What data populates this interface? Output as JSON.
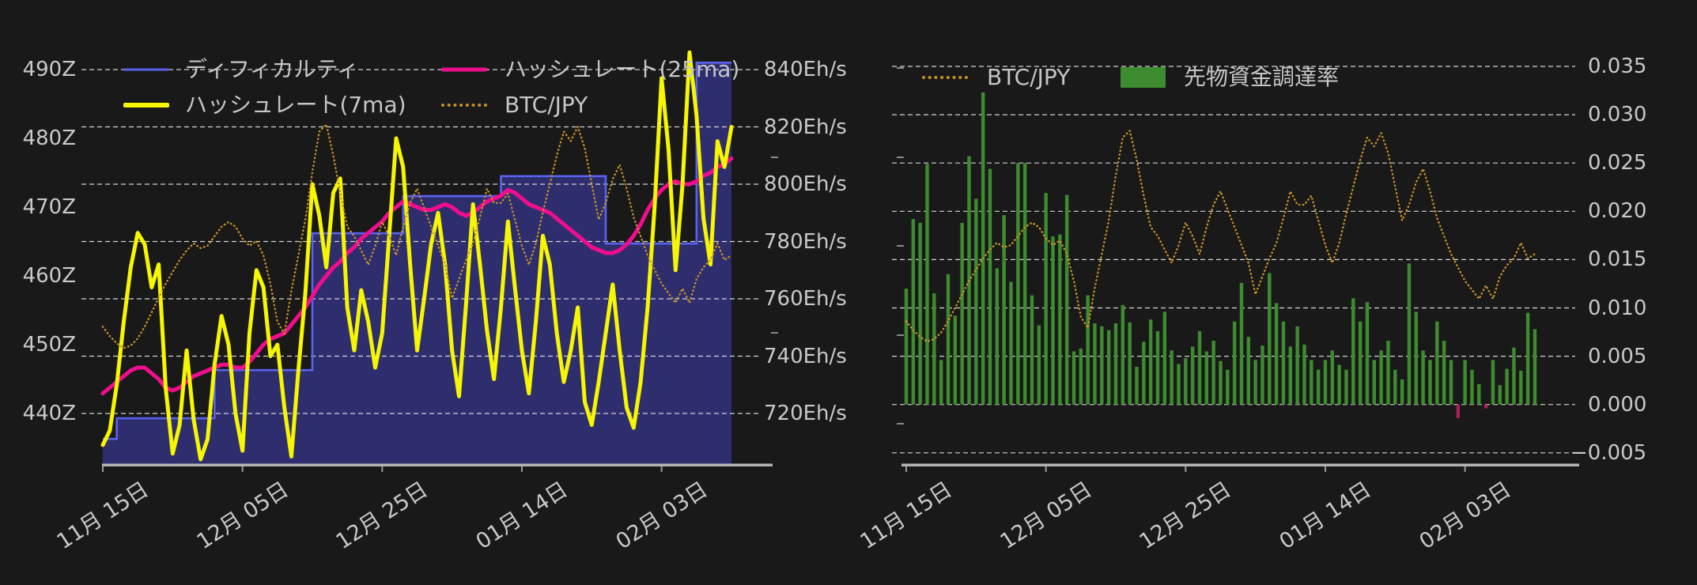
{
  "app": {
    "background": "#191919",
    "text_color": "#c9c9c9",
    "gridline_color": "#e8e8e8",
    "baseline_color": "#b5b5b5"
  },
  "left_chart": {
    "legend": [
      {
        "label": "ディフィカルティ",
        "color": "#5a62f0",
        "style": "line-thin"
      },
      {
        "label": "ハッシュレート(25ma)",
        "color": "#f20d8e",
        "style": "line"
      },
      {
        "label": "ハッシュレート(7ma)",
        "color": "#f6f600",
        "style": "line-thick"
      },
      {
        "label": "BTC/JPY",
        "color": "#c79228",
        "style": "dotted"
      }
    ],
    "y_axis_left": {
      "labels": [
        "490Z",
        "480Z",
        "470Z",
        "460Z",
        "450Z",
        "440Z"
      ],
      "values": [
        490,
        480,
        470,
        460,
        450,
        440
      ]
    },
    "y_axis_right": {
      "labels": [
        "840Eh/s",
        "820Eh/s",
        "800Eh/s",
        "780Eh/s",
        "760Eh/s",
        "740Eh/s",
        "720Eh/s"
      ],
      "values": [
        840,
        820,
        800,
        780,
        760,
        740,
        720
      ]
    },
    "x_axis": {
      "labels": [
        "11月 15日",
        "12月 05日",
        "12月 25日",
        "01月 14日",
        "02月 03日"
      ],
      "label_days": [
        0,
        20,
        40,
        60,
        80
      ]
    }
  },
  "right_chart": {
    "legend": [
      {
        "label": "BTC/JPY",
        "color": "#c79228",
        "style": "dotted"
      },
      {
        "label": "先物資金調達率",
        "color": "#3d8c2f",
        "style": "rect"
      }
    ],
    "y_axis_right": {
      "labels": [
        "0.035",
        "0.030",
        "0.025",
        "0.020",
        "0.015",
        "0.010",
        "0.005",
        "0.000",
        "−0.005"
      ],
      "values": [
        0.035,
        0.03,
        0.025,
        0.02,
        0.015,
        0.01,
        0.005,
        0.0,
        -0.005
      ]
    },
    "x_axis": {
      "labels": [
        "11月 15日",
        "12月 05日",
        "12月 25日",
        "01月 14日",
        "02月 03日"
      ],
      "label_days": [
        0,
        20,
        40,
        60,
        80
      ]
    }
  },
  "chart_data": [
    {
      "id": "difficulty-hashrate-chart",
      "type": "line",
      "x": {
        "unit": "day-index",
        "range": [
          0,
          90
        ],
        "tick_days": [
          0,
          20,
          40,
          60,
          80
        ],
        "tick_labels": [
          "11月 15日",
          "12月 05日",
          "12月 25日",
          "01月 14日",
          "02月 03日"
        ]
      },
      "ylim_left": [
        435,
        492
      ],
      "ylim_right_ehs": [
        715,
        845
      ],
      "grid": "horizontal-dashed-at-right-axis-values",
      "legend_position": "top-inside-two-rows",
      "series": [
        {
          "name": "ディフィカルティ",
          "unit": "Z",
          "axis": "left",
          "color": "#5a62f0",
          "fill_color": "#2e2e6e",
          "style": "step-area",
          "segments": [
            {
              "from_day": 0,
              "to_day": 2,
              "value": 436.3
            },
            {
              "from_day": 2,
              "to_day": 16,
              "value": 439.3
            },
            {
              "from_day": 16,
              "to_day": 30,
              "value": 446.3
            },
            {
              "from_day": 30,
              "to_day": 43,
              "value": 466.2
            },
            {
              "from_day": 43,
              "to_day": 57,
              "value": 471.6
            },
            {
              "from_day": 57,
              "to_day": 72,
              "value": 474.5
            },
            {
              "from_day": 72,
              "to_day": 85,
              "value": 464.7
            },
            {
              "from_day": 85,
              "to_day": 90,
              "value": 491.0
            }
          ]
        },
        {
          "name": "ハッシュレート(7ma)",
          "unit": "Eh/s",
          "axis": "right",
          "color": "#f6f600",
          "style": "solid",
          "values": [
            709,
            714,
            730,
            752,
            771,
            783,
            779,
            764,
            772,
            729,
            706,
            716,
            742,
            718,
            704,
            711,
            737,
            754,
            744,
            720,
            707,
            748,
            770,
            764,
            740,
            744,
            722,
            705,
            735,
            762,
            800,
            789,
            771,
            797,
            802,
            757,
            742,
            763,
            752,
            736,
            748,
            782,
            816,
            806,
            772,
            742,
            760,
            779,
            790,
            772,
            742,
            726,
            758,
            793,
            772,
            749,
            732,
            757,
            787,
            764,
            742,
            727,
            752,
            782,
            772,
            748,
            731,
            742,
            757,
            724,
            716,
            731,
            748,
            765,
            742,
            722,
            715,
            731,
            757,
            792,
            837,
            812,
            770,
            800,
            846,
            824,
            788,
            772,
            815,
            806,
            820
          ]
        },
        {
          "name": "ハッシュレート(25ma)",
          "unit": "Eh/s",
          "axis": "right",
          "color": "#f20d8e",
          "style": "solid",
          "values": [
            727,
            729,
            731,
            733,
            735,
            736,
            736,
            734,
            732,
            729,
            728,
            729,
            731,
            733,
            734,
            735,
            736,
            737,
            737,
            736,
            736,
            738,
            741,
            744,
            746,
            747,
            748,
            751,
            754,
            757,
            761,
            765,
            768,
            771,
            773,
            776,
            778,
            781,
            783,
            785,
            787,
            790,
            792,
            794,
            793,
            792,
            791,
            791,
            792,
            793,
            792,
            790,
            789,
            790,
            792,
            794,
            795,
            796,
            798,
            797,
            795,
            793,
            792,
            791,
            790,
            788,
            786,
            784,
            782,
            780,
            778,
            777,
            776,
            776,
            777,
            779,
            782,
            786,
            791,
            795,
            798,
            800,
            801,
            800,
            800,
            801,
            803,
            804,
            806,
            807,
            809
          ]
        },
        {
          "name": "BTC/JPY",
          "axis": "none-visible",
          "color": "#c79228",
          "style": "dotted",
          "note": "price axis not shown in chart; values normalized 0-1 of its visual span",
          "values_norm": [
            0.1,
            0.06,
            0.03,
            0.01,
            0.02,
            0.05,
            0.1,
            0.16,
            0.22,
            0.28,
            0.33,
            0.38,
            0.42,
            0.45,
            0.43,
            0.44,
            0.48,
            0.52,
            0.54,
            0.52,
            0.47,
            0.44,
            0.46,
            0.4,
            0.28,
            0.12,
            0.07,
            0.25,
            0.4,
            0.55,
            0.75,
            0.92,
            0.95,
            0.82,
            0.66,
            0.52,
            0.48,
            0.42,
            0.36,
            0.44,
            0.54,
            0.48,
            0.4,
            0.52,
            0.62,
            0.68,
            0.6,
            0.52,
            0.44,
            0.36,
            0.22,
            0.3,
            0.38,
            0.45,
            0.56,
            0.68,
            0.62,
            0.62,
            0.66,
            0.55,
            0.44,
            0.36,
            0.45,
            0.58,
            0.7,
            0.82,
            0.92,
            0.88,
            0.94,
            0.85,
            0.7,
            0.55,
            0.62,
            0.72,
            0.78,
            0.68,
            0.56,
            0.48,
            0.4,
            0.34,
            0.28,
            0.24,
            0.2,
            0.26,
            0.2,
            0.3,
            0.35,
            0.38,
            0.45,
            0.38,
            0.4
          ]
        }
      ]
    },
    {
      "id": "funding-rate-chart",
      "type": "bar",
      "x": {
        "unit": "day-index",
        "range": [
          0,
          90
        ],
        "tick_days": [
          0,
          20,
          40,
          60,
          80
        ],
        "tick_labels": [
          "11月 15日",
          "12月 05日",
          "12月 25日",
          "01月 14日",
          "02月 03日"
        ]
      },
      "ylim": [
        -0.005,
        0.035
      ],
      "grid": "horizontal-dashed",
      "legend_position": "top-inside",
      "series": [
        {
          "name": "先物資金調達率",
          "color": "#3d8c2f",
          "negative_color": "#a8215a",
          "style": "bar",
          "values": [
            0.012,
            0.0192,
            0.0188,
            0.0249,
            0.0115,
            0.0046,
            0.0135,
            0.0092,
            0.0188,
            0.0257,
            0.0213,
            0.0323,
            0.0244,
            0.0141,
            0.0196,
            0.0127,
            0.025,
            0.025,
            0.0113,
            0.0082,
            0.0219,
            0.0174,
            0.0176,
            0.0217,
            0.0055,
            0.0058,
            0.0113,
            0.0084,
            0.0081,
            0.0077,
            0.0084,
            0.0103,
            0.0085,
            0.0039,
            0.0065,
            0.0088,
            0.0076,
            0.0096,
            0.0056,
            0.0042,
            0.0048,
            0.006,
            0.0076,
            0.0055,
            0.0066,
            0.0045,
            0.0036,
            0.0086,
            0.0126,
            0.007,
            0.0046,
            0.0061,
            0.0136,
            0.0105,
            0.0086,
            0.006,
            0.0081,
            0.0062,
            0.0046,
            0.0036,
            0.0046,
            0.0056,
            0.0041,
            0.0036,
            0.011,
            0.0086,
            0.0106,
            0.0046,
            0.0056,
            0.0066,
            0.0036,
            0.0026,
            0.0146,
            0.0096,
            0.0056,
            0.0046,
            0.0086,
            0.0066,
            0.0046,
            -0.0014,
            0.0046,
            0.0036,
            0.0021,
            -0.0004,
            0.0046,
            0.002,
            0.0037,
            0.0059,
            0.0035,
            0.0095,
            0.0078
          ]
        },
        {
          "name": "BTC/JPY",
          "color": "#c79228",
          "style": "dotted",
          "note": "same normalized series as left chart; drawn against funding-rate pixel span 0.0063-0.0295",
          "visual_span": [
            0.0063,
            0.0295
          ]
        }
      ]
    }
  ]
}
